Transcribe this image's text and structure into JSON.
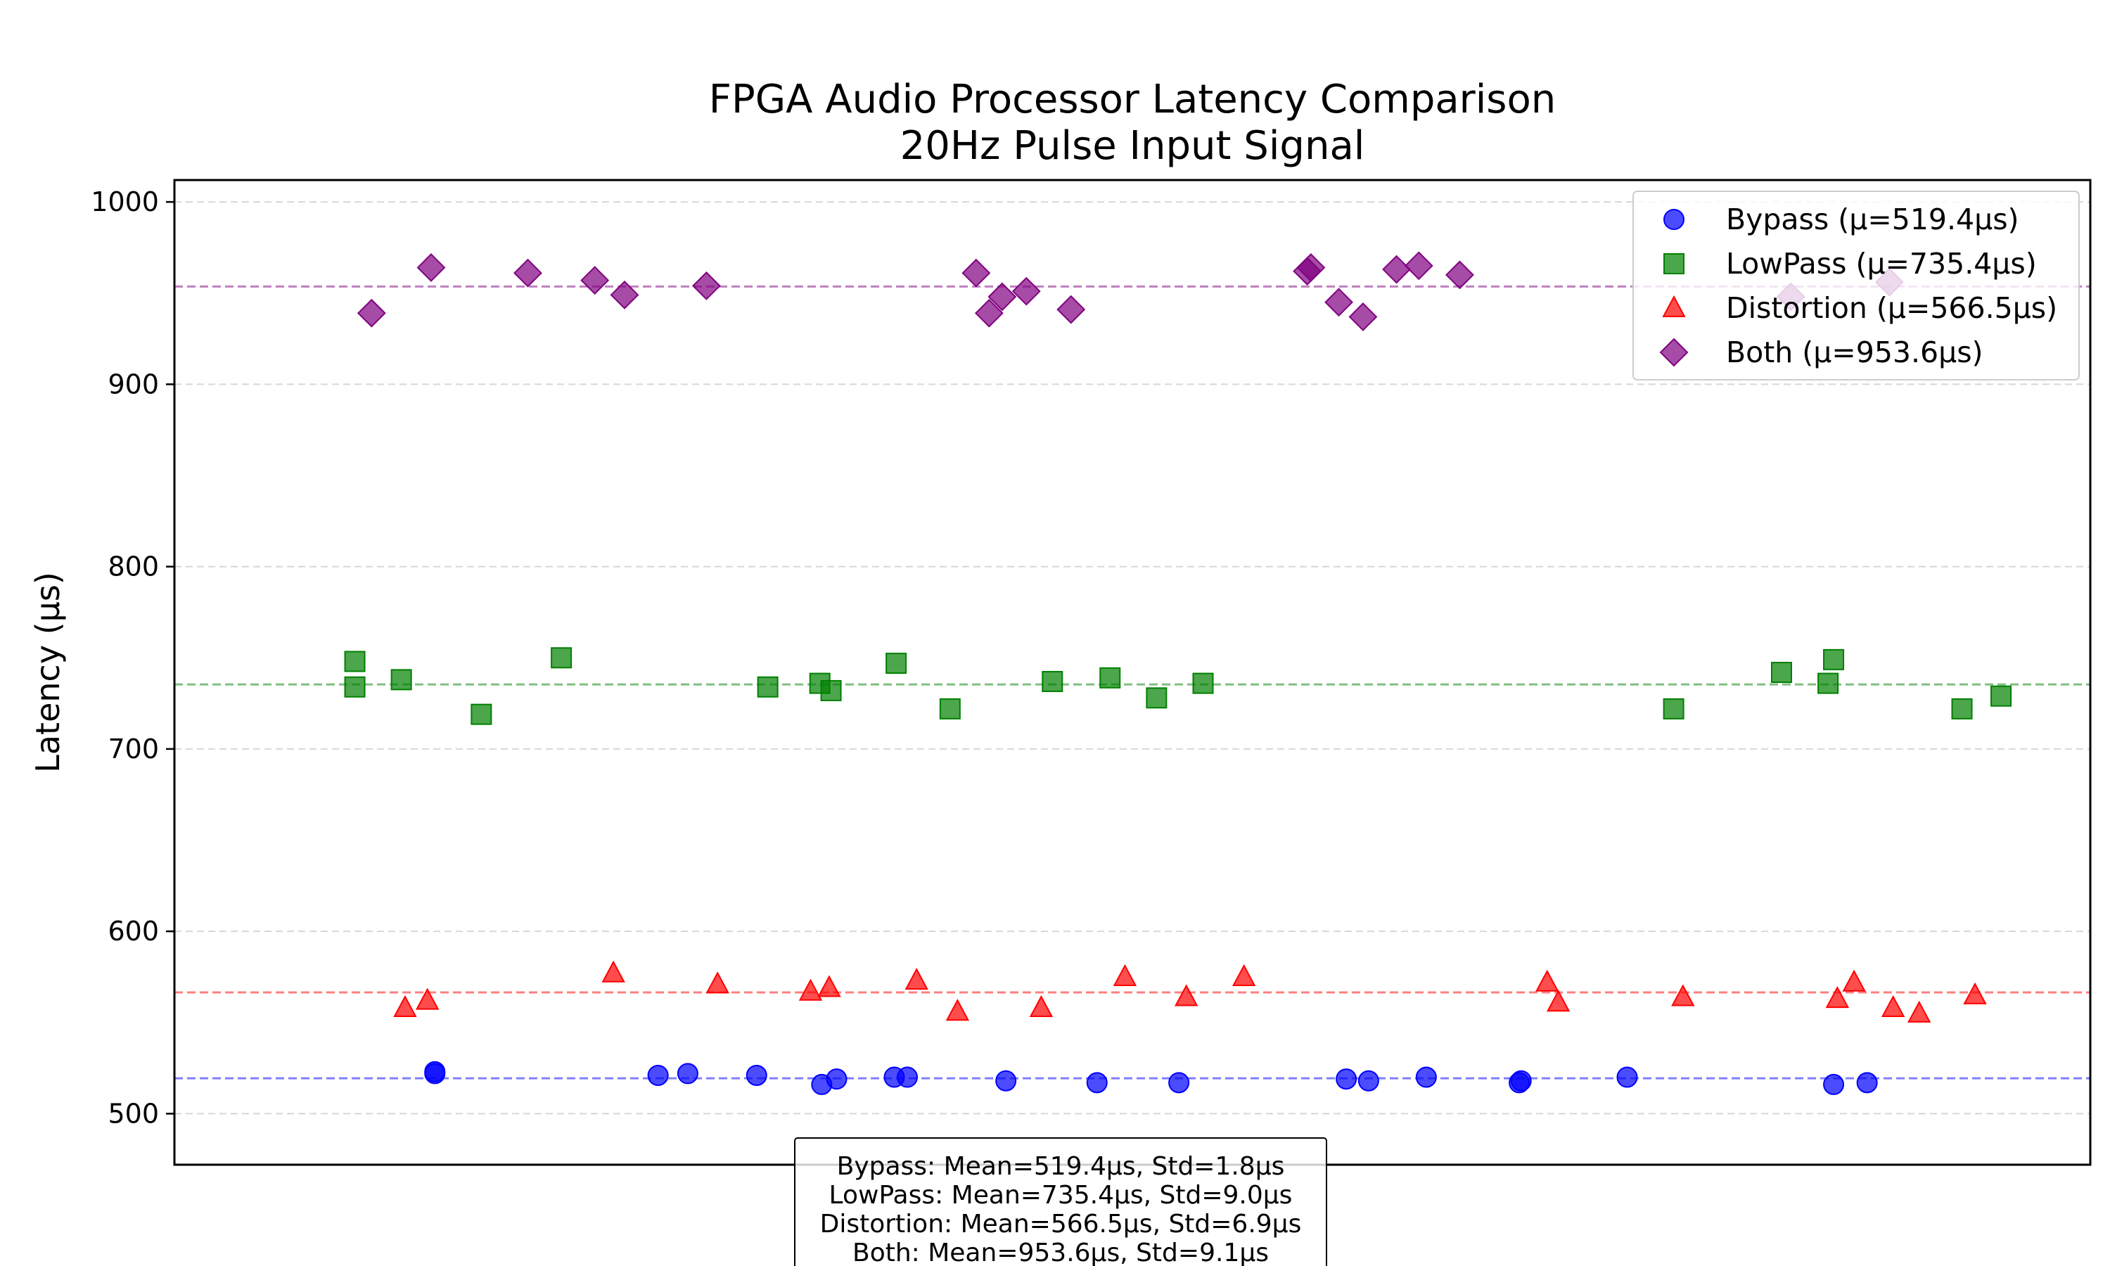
{
  "chart_data": {
    "type": "scatter",
    "title": [
      "FPGA Audio Processor Latency Comparison",
      "20Hz Pulse Input Signal"
    ],
    "xlabel": "",
    "ylabel": "Latency (µs)",
    "xlim": [
      -3,
      100
    ],
    "ylim": [
      472,
      1012
    ],
    "yticks": [
      500,
      600,
      700,
      800,
      900,
      1000
    ],
    "grid": "horizontal dashed",
    "legend_position": "top-right",
    "series": [
      {
        "name": "Bypass",
        "legend_label": "Bypass (µ=519.4µs)",
        "marker": "circle",
        "color": "#0000ff",
        "mean": 519.4,
        "x": [
          11,
          11,
          23,
          24.6,
          28.3,
          31.8,
          32.6,
          35.7,
          36.4,
          41.7,
          46.6,
          51,
          60,
          61.2,
          64.3,
          69.3,
          69.4,
          75.1,
          86.2,
          88
        ],
        "y": [
          523,
          522,
          521,
          522,
          521,
          516,
          519,
          520,
          520,
          518,
          517,
          517,
          519,
          518,
          520,
          517,
          518,
          520,
          516,
          517
        ]
      },
      {
        "name": "LowPass",
        "legend_label": "LowPass (µ=735.4µs)",
        "marker": "square",
        "color": "#008000",
        "mean": 735.4,
        "x": [
          6.7,
          6.7,
          9.2,
          13.5,
          17.8,
          28.9,
          31.7,
          32.3,
          35.8,
          38.7,
          44.2,
          47.3,
          49.8,
          52.3,
          77.6,
          83.4,
          85.9,
          86.2,
          93.1,
          95.2
        ],
        "y": [
          748,
          734,
          738,
          719,
          750,
          734,
          736,
          732,
          747,
          722,
          737,
          739,
          728,
          736,
          722,
          742,
          736,
          749,
          722,
          729
        ]
      },
      {
        "name": "Distortion",
        "legend_label": "Distortion (µ=566.5µs)",
        "marker": "triangle",
        "color": "#ff0000",
        "mean": 566.5,
        "x": [
          9.4,
          10.6,
          20.6,
          26.2,
          31.2,
          32.2,
          36.9,
          39.1,
          43.6,
          48.1,
          51.4,
          54.5,
          70.8,
          71.4,
          78.1,
          86.4,
          87.3,
          89.4,
          90.8,
          93.8
        ],
        "y": [
          558,
          562,
          577,
          571,
          567,
          569,
          573,
          556,
          558,
          575,
          564,
          575,
          572,
          561,
          564,
          563,
          572,
          558,
          555,
          565
        ]
      },
      {
        "name": "Both",
        "legend_label": "Both (µ=953.6µs)",
        "marker": "diamond",
        "color": "#800080",
        "mean": 953.6,
        "x": [
          7.6,
          10.8,
          16,
          19.6,
          21.2,
          25.6,
          40.1,
          40.8,
          41.5,
          42.8,
          45.2,
          57.9,
          58.1,
          59.6,
          60.9,
          62.7,
          63.9,
          66.1,
          83.9,
          89.2
        ],
        "y": [
          939,
          964,
          961,
          957,
          949,
          954,
          961,
          939,
          948,
          951,
          941,
          962,
          964,
          945,
          937,
          963,
          965,
          960,
          948,
          956
        ]
      }
    ],
    "stats_box": [
      "Bypass: Mean=519.4µs, Std=1.8µs",
      "LowPass: Mean=735.4µs, Std=9.0µs",
      "Distortion: Mean=566.5µs, Std=6.9µs",
      "Both: Mean=953.6µs, Std=9.1µs"
    ]
  }
}
